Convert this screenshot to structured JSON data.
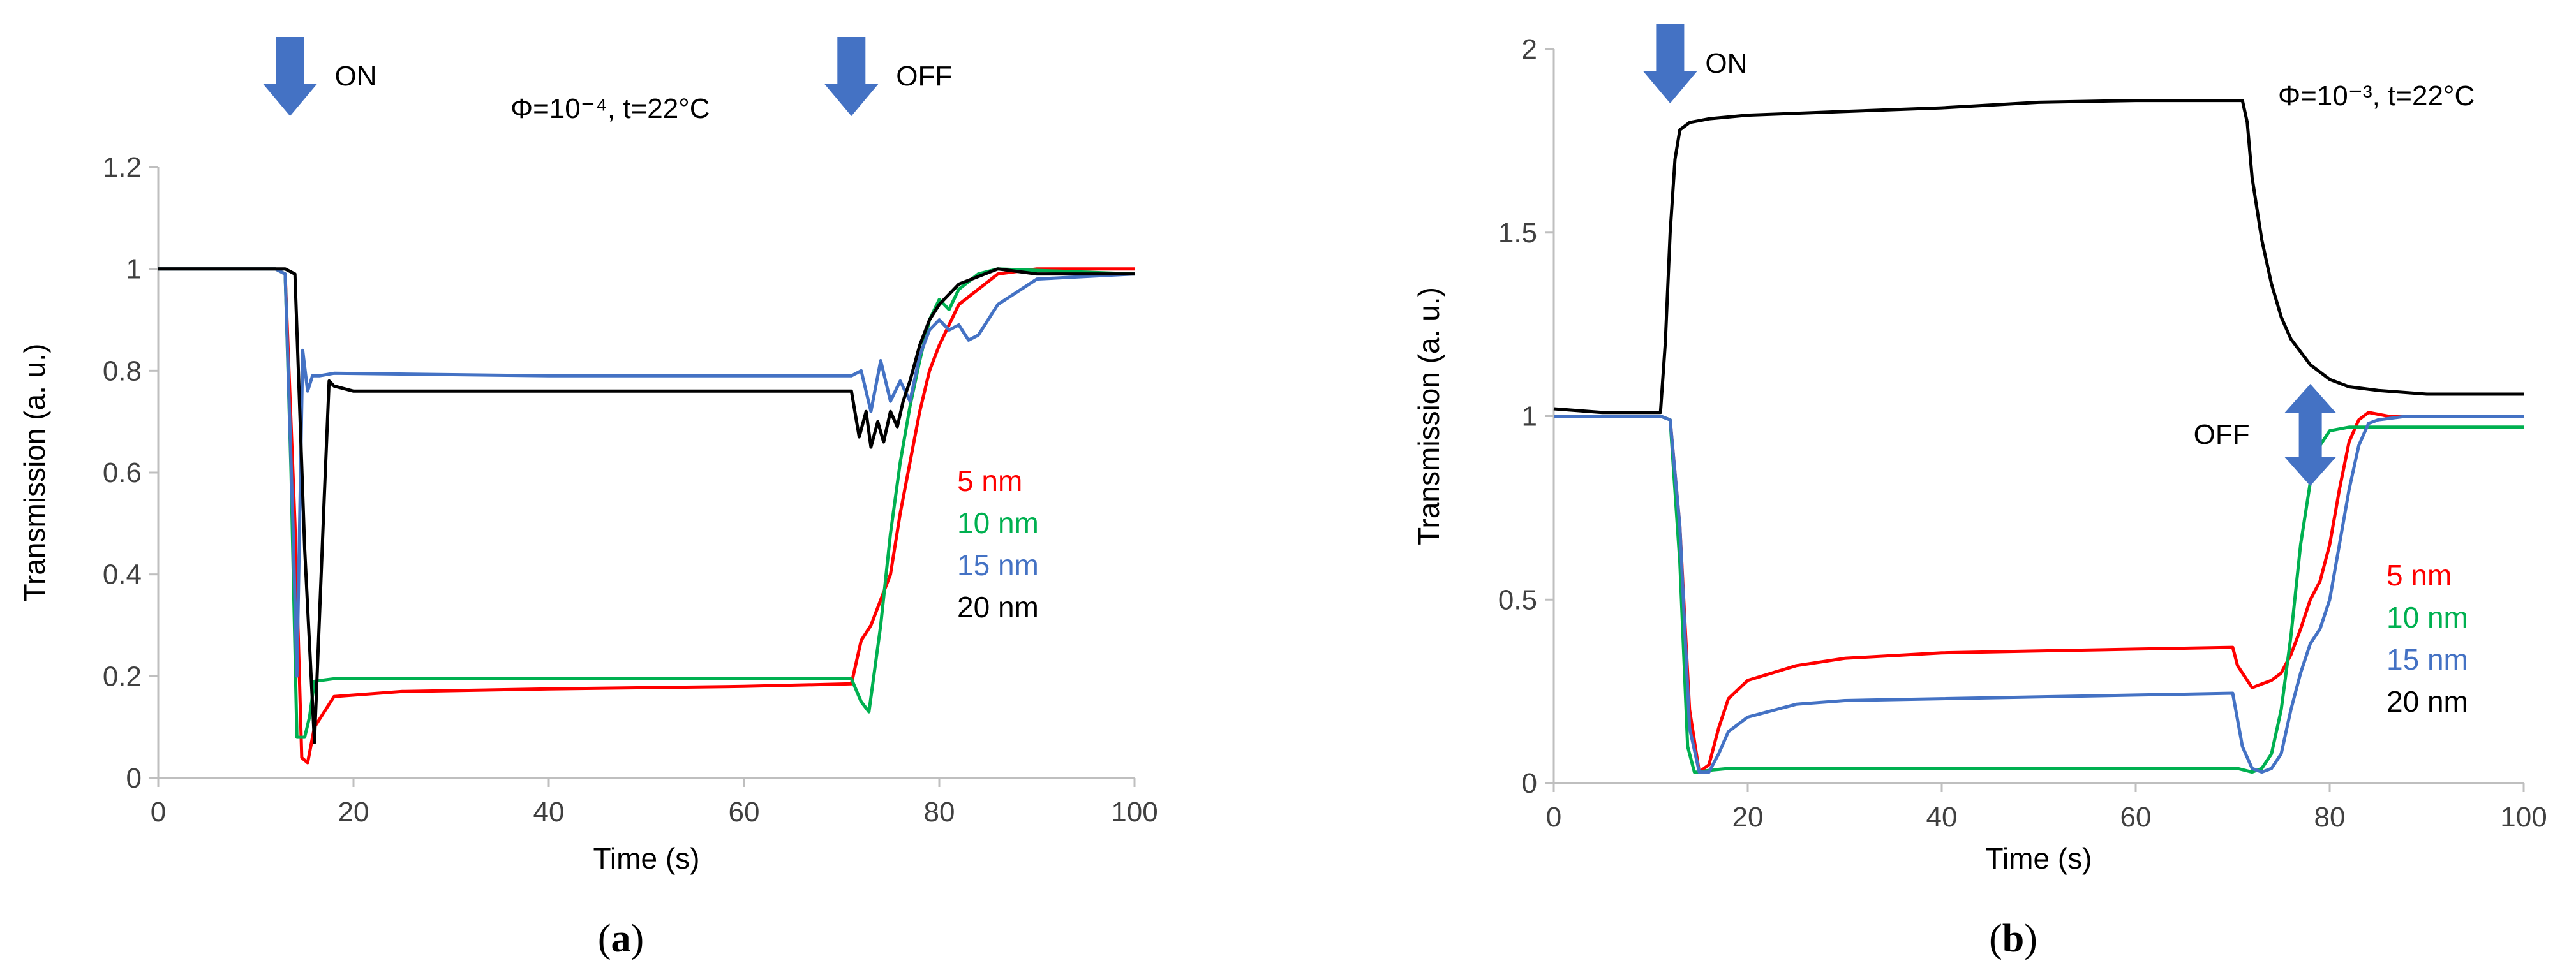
{
  "colors": {
    "red": "#ff0000",
    "green": "#00b050",
    "blue": "#4472c4",
    "black": "#000000",
    "arrow": "#4472c4",
    "axis": "#bfbfbf",
    "text": "#404040"
  },
  "chart_data": [
    {
      "type": "line",
      "panel": "a",
      "caption_label": "a",
      "title": "Φ=10⁻⁴, t=22°C",
      "xlabel": "Time (s)",
      "ylabel": "Transmission (a. u.)",
      "xlim": [
        0,
        100
      ],
      "ylim": [
        0,
        1.2
      ],
      "xticks": [
        0,
        20,
        40,
        60,
        80,
        100
      ],
      "yticks": [
        "0",
        "0.2",
        "0.4",
        "0.6",
        "0.8",
        "1",
        "1.2"
      ],
      "yticks_values": [
        0,
        0.2,
        0.4,
        0.6,
        0.8,
        1,
        1.2
      ],
      "annotations": [
        {
          "text": "ON",
          "x": 13.5
        },
        {
          "text": "OFF",
          "x": 71
        }
      ],
      "series": [
        {
          "name": "5 nm",
          "color": "#ff0000",
          "x": [
            0,
            12,
            13,
            14,
            14.7,
            15.3,
            16,
            18,
            25,
            40,
            60,
            71,
            72,
            73,
            74,
            75,
            76,
            77,
            78,
            79,
            80,
            82,
            86,
            90,
            100
          ],
          "y": [
            1.0,
            1.0,
            0.99,
            0.5,
            0.04,
            0.03,
            0.1,
            0.16,
            0.17,
            0.175,
            0.18,
            0.185,
            0.27,
            0.3,
            0.35,
            0.4,
            0.52,
            0.62,
            0.72,
            0.8,
            0.85,
            0.93,
            0.99,
            1.0,
            1.0
          ]
        },
        {
          "name": "10 nm",
          "color": "#00b050",
          "x": [
            0,
            12,
            13,
            13.6,
            14.2,
            15,
            15.5,
            16,
            18,
            40,
            60,
            71,
            72,
            72.8,
            74,
            75,
            76,
            77,
            78,
            79,
            80,
            81,
            82,
            84,
            86,
            100
          ],
          "y": [
            1.0,
            1.0,
            0.99,
            0.6,
            0.08,
            0.08,
            0.12,
            0.19,
            0.195,
            0.195,
            0.195,
            0.195,
            0.15,
            0.13,
            0.3,
            0.48,
            0.62,
            0.73,
            0.82,
            0.9,
            0.94,
            0.92,
            0.96,
            0.99,
            1.0,
            0.99
          ]
        },
        {
          "name": "15 nm",
          "color": "#4472c4",
          "x": [
            0,
            12,
            13,
            13.8,
            14.2,
            14.8,
            15.3,
            15.8,
            16.5,
            18,
            40,
            60,
            71,
            72,
            73,
            74,
            75,
            76,
            77,
            78,
            79,
            80,
            81,
            82,
            83,
            84,
            86,
            90,
            100
          ],
          "y": [
            1.0,
            1.0,
            0.99,
            0.5,
            0.2,
            0.84,
            0.76,
            0.79,
            0.79,
            0.795,
            0.79,
            0.79,
            0.79,
            0.8,
            0.72,
            0.82,
            0.74,
            0.78,
            0.74,
            0.83,
            0.88,
            0.9,
            0.88,
            0.89,
            0.86,
            0.87,
            0.93,
            0.98,
            0.99
          ]
        },
        {
          "name": "20 nm",
          "color": "#000000",
          "x": [
            0,
            12,
            13,
            14,
            15,
            16,
            17,
            17.5,
            18,
            20,
            40,
            60,
            71,
            71.8,
            72.5,
            73,
            73.7,
            74.3,
            75,
            75.7,
            76.3,
            77,
            78,
            79,
            80,
            82,
            86,
            90,
            100
          ],
          "y": [
            1.0,
            1.0,
            1.0,
            0.99,
            0.45,
            0.07,
            0.55,
            0.78,
            0.77,
            0.76,
            0.76,
            0.76,
            0.76,
            0.67,
            0.72,
            0.65,
            0.7,
            0.66,
            0.72,
            0.69,
            0.74,
            0.78,
            0.85,
            0.9,
            0.93,
            0.97,
            1.0,
            0.99,
            0.99
          ]
        }
      ]
    },
    {
      "type": "line",
      "panel": "b",
      "caption_label": "b",
      "title": "Φ=10⁻³, t=22°C",
      "xlabel": "Time (s)",
      "ylabel": "Transmission (a. u.)",
      "xlim": [
        0,
        100
      ],
      "ylim": [
        0,
        2
      ],
      "xticks": [
        0,
        20,
        40,
        60,
        80,
        100
      ],
      "yticks": [
        "0",
        "0.5",
        "1",
        "1.5",
        "2"
      ],
      "yticks_values": [
        0,
        0.5,
        1,
        1.5,
        2
      ],
      "annotations": [
        {
          "text": "ON",
          "x": 12
        },
        {
          "text": "OFF",
          "x": 78
        }
      ],
      "series": [
        {
          "name": "5 nm",
          "color": "#ff0000",
          "x": [
            0,
            11,
            12,
            13,
            14,
            15,
            16,
            17,
            18,
            20,
            25,
            30,
            40,
            60,
            70,
            70.5,
            71,
            72,
            73,
            74,
            75,
            76,
            77,
            78,
            79,
            80,
            81,
            82,
            83,
            84,
            86,
            90
          ],
          "y": [
            1.0,
            1.0,
            0.99,
            0.7,
            0.2,
            0.03,
            0.05,
            0.15,
            0.23,
            0.28,
            0.32,
            0.34,
            0.355,
            0.365,
            0.37,
            0.32,
            0.3,
            0.26,
            0.27,
            0.28,
            0.3,
            0.35,
            0.42,
            0.5,
            0.55,
            0.65,
            0.8,
            0.93,
            0.99,
            1.01,
            1.0,
            1.0
          ]
        },
        {
          "name": "10 nm",
          "color": "#00b050",
          "x": [
            0,
            11,
            12,
            13,
            13.8,
            14.5,
            15,
            16,
            18,
            25,
            40,
            60,
            70.5,
            72,
            73,
            74,
            75,
            76,
            77,
            78,
            79,
            80,
            82,
            85,
            100
          ],
          "y": [
            1.0,
            1.0,
            0.99,
            0.6,
            0.1,
            0.03,
            0.03,
            0.035,
            0.04,
            0.04,
            0.04,
            0.04,
            0.04,
            0.03,
            0.04,
            0.08,
            0.2,
            0.4,
            0.65,
            0.82,
            0.92,
            0.96,
            0.97,
            0.97,
            0.97
          ]
        },
        {
          "name": "15 nm",
          "color": "#4472c4",
          "x": [
            0,
            11,
            12,
            13,
            14,
            15,
            16,
            17,
            18,
            20,
            25,
            30,
            40,
            60,
            70,
            71,
            72,
            73,
            74,
            75,
            76,
            77,
            78,
            79,
            80,
            81,
            82,
            83,
            84,
            85,
            88,
            100
          ],
          "y": [
            1.0,
            1.0,
            0.99,
            0.7,
            0.15,
            0.03,
            0.03,
            0.08,
            0.14,
            0.18,
            0.215,
            0.225,
            0.23,
            0.24,
            0.245,
            0.1,
            0.04,
            0.03,
            0.04,
            0.08,
            0.2,
            0.3,
            0.38,
            0.42,
            0.5,
            0.65,
            0.8,
            0.92,
            0.98,
            0.99,
            1.0,
            1.0
          ]
        },
        {
          "name": "20 nm",
          "color": "#000000",
          "x": [
            0,
            5,
            10,
            11,
            11.5,
            12,
            12.5,
            13,
            14,
            16,
            20,
            30,
            40,
            50,
            60,
            65,
            71,
            71.5,
            72,
            73,
            74,
            75,
            76,
            78,
            80,
            82,
            85,
            90,
            100
          ],
          "y": [
            1.02,
            1.01,
            1.01,
            1.01,
            1.2,
            1.5,
            1.7,
            1.78,
            1.8,
            1.81,
            1.82,
            1.83,
            1.84,
            1.855,
            1.86,
            1.86,
            1.86,
            1.8,
            1.65,
            1.48,
            1.36,
            1.27,
            1.21,
            1.14,
            1.1,
            1.08,
            1.07,
            1.06,
            1.06
          ]
        }
      ]
    }
  ]
}
